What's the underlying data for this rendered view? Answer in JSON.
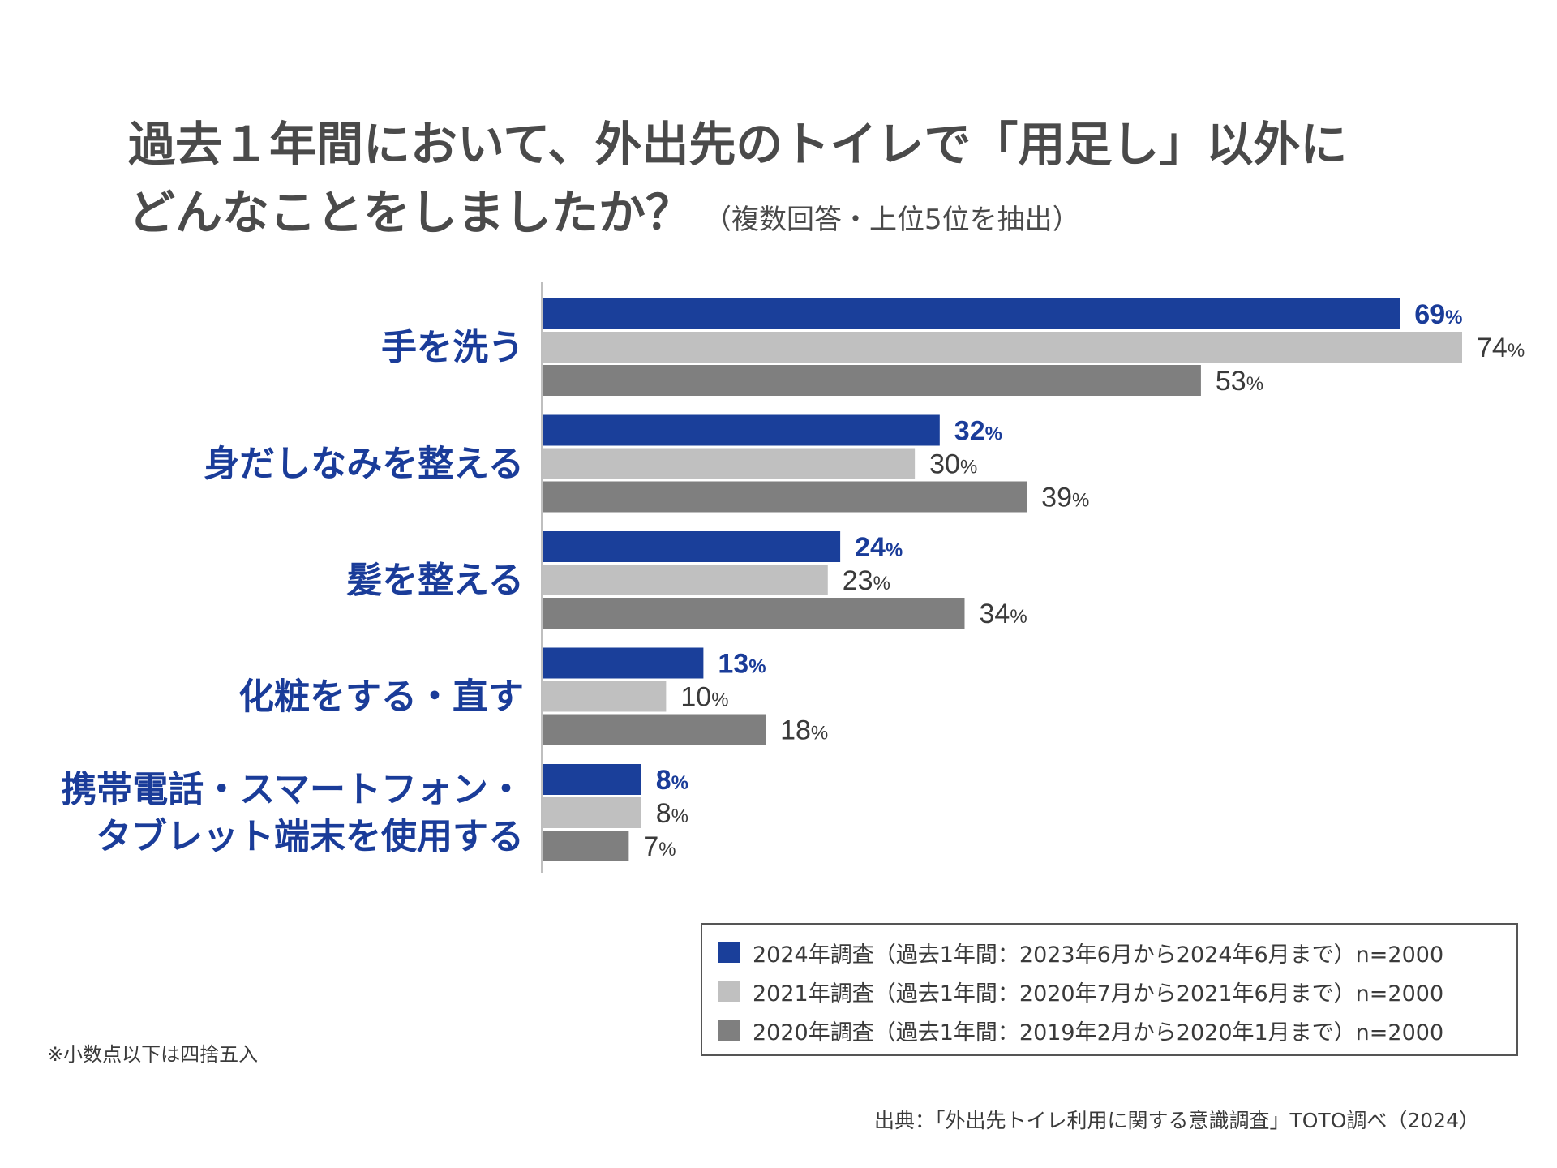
{
  "title": {
    "line1": "過去１年間において、外出先のトイレで「用足し」以外に",
    "line2": "どんなことをしましたか？",
    "subtitle": "（複数回答・上位5位を抽出）"
  },
  "chart_data": {
    "type": "bar",
    "orientation": "horizontal",
    "categories": [
      [
        "手を洗う"
      ],
      [
        "身だしなみを整える"
      ],
      [
        "髪を整える"
      ],
      [
        "化粧をする・直す"
      ],
      [
        "携帯電話・スマートフォン・",
        "タブレット端末を使用する"
      ]
    ],
    "series": [
      {
        "name": "2024年調査（過去1年間：2023年6月から2024年6月まで）n=2000",
        "color": "#1a3f9a",
        "values": [
          69,
          32,
          24,
          13,
          8
        ]
      },
      {
        "name": "2021年調査（過去1年間：2020年7月から2021年6月まで）n=2000",
        "color": "#c0c0c0",
        "values": [
          74,
          30,
          23,
          10,
          8
        ]
      },
      {
        "name": "2020年調査（過去1年間：2019年2月から2020年1月まで）n=2000",
        "color": "#7f7f7f",
        "values": [
          53,
          39,
          34,
          18,
          7
        ]
      }
    ],
    "unit": "%",
    "highlight_series": 0,
    "xlim": [
      0,
      74
    ]
  },
  "legend": [
    {
      "label": "2024年調査（過去1年間：2023年6月から2024年6月まで）n=2000",
      "color": "#1a3f9a"
    },
    {
      "label": "2021年調査（過去1年間：2020年7月から2021年6月まで）n=2000",
      "color": "#c0c0c0"
    },
    {
      "label": "2020年調査（過去1年間：2019年2月から2020年1月まで）n=2000",
      "color": "#7f7f7f"
    }
  ],
  "note": "※小数点以下は四捨五入",
  "source": "出典：「外出先トイレ利用に関する意識調査」TOTO調べ（2024）"
}
